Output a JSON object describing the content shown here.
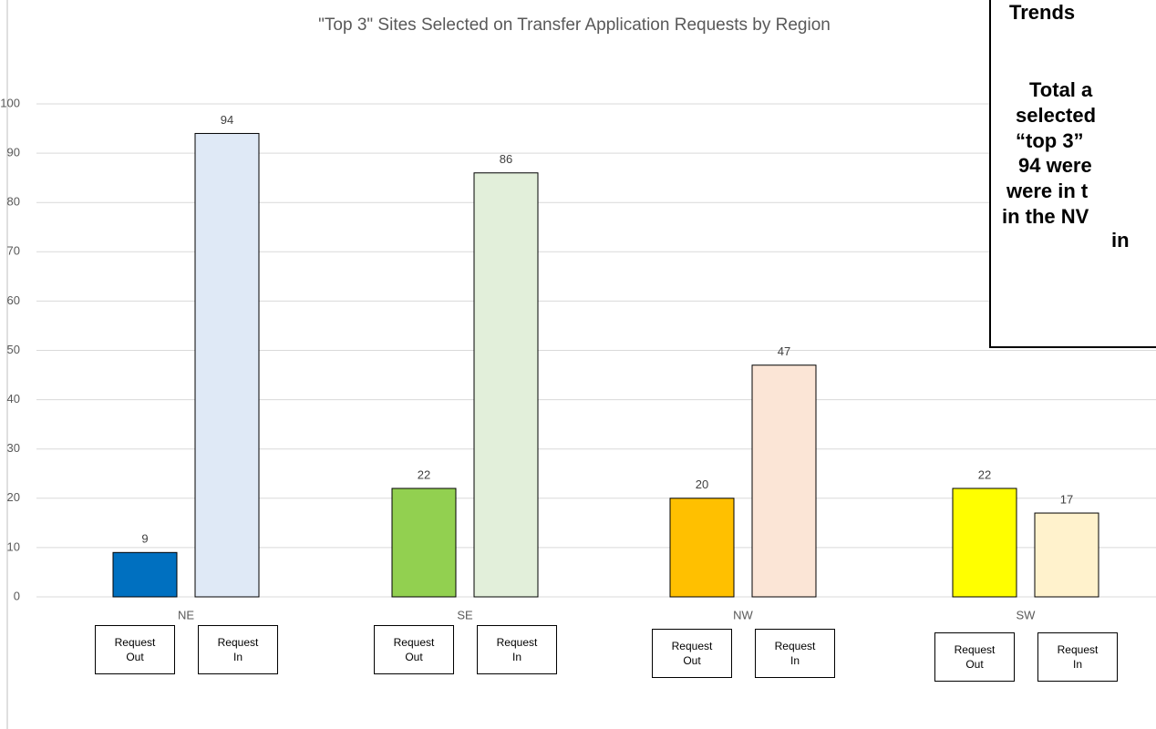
{
  "chart_data": {
    "type": "bar",
    "title": "\"Top 3\" Sites Selected on Transfer Application Requests by Region",
    "categories": [
      "NE",
      "SE",
      "NW",
      "SW"
    ],
    "series": [
      {
        "name": "Request Out",
        "colors": [
          "#0070c0",
          "#92d050",
          "#ffc000",
          "#ffff00"
        ],
        "values": [
          9,
          22,
          20,
          22
        ]
      },
      {
        "name": "Request In",
        "colors": [
          "#dfe9f6",
          "#e2efda",
          "#fbe5d6",
          "#fff2cc"
        ],
        "values": [
          94,
          86,
          47,
          17
        ]
      }
    ],
    "ylim": [
      0,
      100
    ],
    "yticks": [
      0,
      10,
      20,
      30,
      40,
      50,
      60,
      70,
      80,
      90,
      100
    ],
    "grid": true,
    "annotation": {
      "lines": [
        "Trends",
        "Total a",
        "selected",
        "“top 3”",
        "94 were",
        "were in t",
        "in the NV",
        "in"
      ]
    }
  }
}
